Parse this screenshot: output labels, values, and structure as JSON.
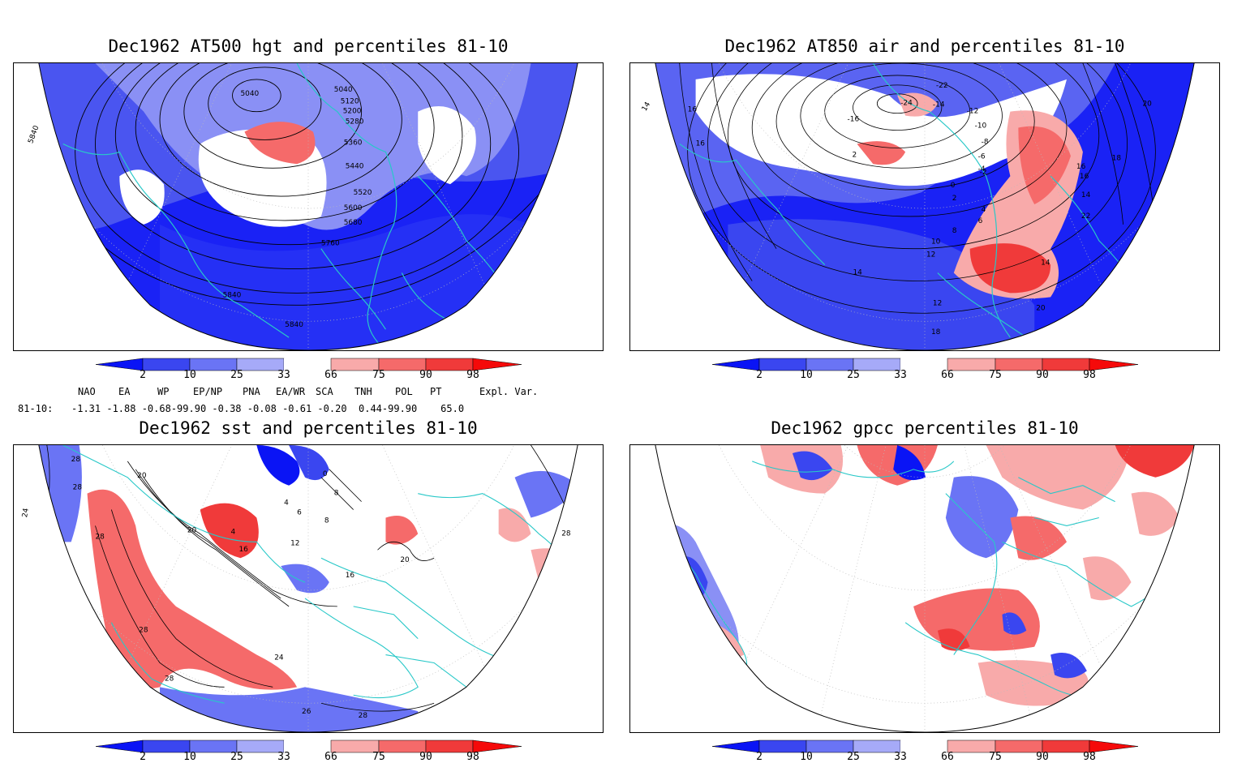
{
  "panels": [
    {
      "title": "Dec1962 AT500 hgt and percentiles 81-10",
      "contour_labels": [
        "5040",
        "5040",
        "5120",
        "5200",
        "5280",
        "5360",
        "5440",
        "5520",
        "5600",
        "5680",
        "5760",
        "5840",
        "5840",
        "5840"
      ]
    },
    {
      "title": "Dec1962 AT850 air and percentiles 81-10",
      "contour_labels": [
        "14",
        "16",
        "16",
        "-16",
        "-24",
        "-22",
        "-14",
        "-12",
        "-10",
        "-8",
        "-6",
        "-4",
        "-2",
        "2",
        "0",
        "2",
        "4",
        "6",
        "8",
        "10",
        "12",
        "14",
        "16",
        "18",
        "20",
        "22",
        "14",
        "12",
        "14",
        "20",
        "18",
        "16"
      ]
    },
    {
      "title": "Dec1962 sst and percentiles 81-10",
      "contour_labels": [
        "28",
        "28",
        "24",
        "20",
        "20",
        "16",
        "12",
        "8",
        "4",
        "0",
        "4",
        "6",
        "8",
        "28",
        "28",
        "28",
        "24",
        "20",
        "16",
        "26",
        "28",
        "28"
      ]
    },
    {
      "title": "Dec1962 gpcc percentiles 81-10",
      "contour_labels": []
    }
  ],
  "colorbar": {
    "ticks": [
      "2",
      "10",
      "25",
      "33",
      "66",
      "75",
      "90",
      "98"
    ],
    "colors": [
      "#0a14f5",
      "#3a46f0",
      "#6a74f5",
      "#a6aaf8",
      "#ffffff",
      "#f8aaaa",
      "#f56a6a",
      "#f03a3a",
      "#f50a0a"
    ]
  },
  "indices": {
    "headers": [
      "NAO",
      "EA",
      "WP",
      "EP/NP",
      "PNA",
      "EA/WR",
      "SCA",
      "TNH",
      "POL",
      "PT",
      "Expl. Var."
    ],
    "row_label": "81-10:",
    "values_text": "-1.31 -1.88 -0.68-99.90 -0.38 -0.08 -0.61 -0.20  0.44-99.90    65.0"
  }
}
